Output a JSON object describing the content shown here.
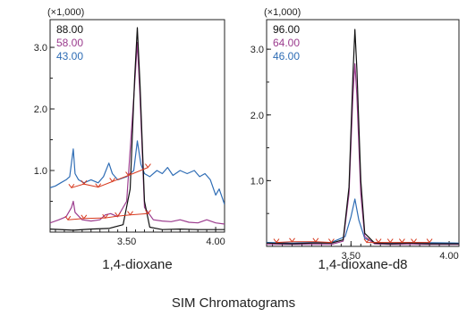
{
  "figure_caption": "SIM Chromatograms",
  "colors": {
    "frame": "#222222",
    "marker": "#d73a1f"
  },
  "chart_data": [
    {
      "type": "line",
      "subtitle": "1,4-dioxane",
      "y_multiplier": "(×1,000)",
      "xlim": [
        3.07,
        4.05
      ],
      "ylim": [
        0,
        3.45
      ],
      "x_ticks": [
        {
          "value": 3.5,
          "label": "3.50"
        },
        {
          "value": 4.0,
          "label": "4.00"
        }
      ],
      "y_ticks": [
        {
          "value": 1.0,
          "label": "1.0"
        },
        {
          "value": 2.0,
          "label": "2.0"
        },
        {
          "value": 3.0,
          "label": "3.0"
        }
      ],
      "series": [
        {
          "name": "88.00",
          "color": "#111111",
          "points": [
            [
              3.07,
              0.05
            ],
            [
              3.2,
              0.03
            ],
            [
              3.3,
              0.05
            ],
            [
              3.4,
              0.06
            ],
            [
              3.48,
              0.12
            ],
            [
              3.52,
              0.7
            ],
            [
              3.545,
              2.5
            ],
            [
              3.56,
              3.32
            ],
            [
              3.575,
              2.4
            ],
            [
              3.6,
              0.5
            ],
            [
              3.63,
              0.08
            ],
            [
              3.7,
              0.04
            ],
            [
              3.8,
              0.05
            ],
            [
              3.9,
              0.04
            ],
            [
              4.05,
              0.04
            ]
          ]
        },
        {
          "name": "58.00",
          "color": "#9b3c8e",
          "points": [
            [
              3.07,
              0.15
            ],
            [
              3.12,
              0.2
            ],
            [
              3.16,
              0.25
            ],
            [
              3.19,
              0.4
            ],
            [
              3.2,
              0.5
            ],
            [
              3.21,
              0.32
            ],
            [
              3.25,
              0.2
            ],
            [
              3.3,
              0.18
            ],
            [
              3.35,
              0.2
            ],
            [
              3.38,
              0.28
            ],
            [
              3.41,
              0.3
            ],
            [
              3.45,
              0.25
            ],
            [
              3.5,
              0.5
            ],
            [
              3.545,
              2.4
            ],
            [
              3.56,
              3.08
            ],
            [
              3.575,
              2.2
            ],
            [
              3.6,
              0.4
            ],
            [
              3.65,
              0.2
            ],
            [
              3.7,
              0.18
            ],
            [
              3.75,
              0.17
            ],
            [
              3.8,
              0.2
            ],
            [
              3.85,
              0.16
            ],
            [
              3.9,
              0.15
            ],
            [
              3.95,
              0.2
            ],
            [
              4.0,
              0.15
            ],
            [
              4.05,
              0.13
            ]
          ]
        },
        {
          "name": "43.00",
          "color": "#2f6db5",
          "points": [
            [
              3.07,
              0.72
            ],
            [
              3.1,
              0.75
            ],
            [
              3.13,
              0.8
            ],
            [
              3.16,
              0.85
            ],
            [
              3.18,
              0.9
            ],
            [
              3.2,
              1.35
            ],
            [
              3.21,
              0.95
            ],
            [
              3.23,
              0.85
            ],
            [
              3.26,
              0.8
            ],
            [
              3.3,
              0.85
            ],
            [
              3.34,
              0.8
            ],
            [
              3.37,
              0.9
            ],
            [
              3.4,
              1.12
            ],
            [
              3.42,
              0.95
            ],
            [
              3.45,
              0.85
            ],
            [
              3.5,
              0.9
            ],
            [
              3.54,
              1.0
            ],
            [
              3.56,
              1.48
            ],
            [
              3.58,
              1.1
            ],
            [
              3.6,
              0.95
            ],
            [
              3.63,
              0.9
            ],
            [
              3.67,
              1.0
            ],
            [
              3.7,
              0.95
            ],
            [
              3.73,
              1.05
            ],
            [
              3.76,
              0.92
            ],
            [
              3.8,
              1.0
            ],
            [
              3.84,
              0.95
            ],
            [
              3.88,
              1.0
            ],
            [
              3.91,
              0.9
            ],
            [
              3.94,
              0.95
            ],
            [
              3.97,
              0.85
            ],
            [
              4.0,
              0.6
            ],
            [
              4.02,
              0.7
            ],
            [
              4.05,
              0.45
            ]
          ]
        }
      ],
      "peak_markers": [
        {
          "color": "#d73a1f",
          "points": [
            [
              3.19,
              0.72
            ],
            [
              3.26,
              0.78
            ],
            [
              3.34,
              0.73
            ],
            [
              3.42,
              0.82
            ],
            [
              3.51,
              0.92
            ],
            [
              3.62,
              1.05
            ]
          ]
        },
        {
          "color": "#d73a1f",
          "points": [
            [
              3.17,
              0.2
            ],
            [
              3.26,
              0.22
            ],
            [
              3.38,
              0.23
            ],
            [
              3.45,
              0.26
            ],
            [
              3.52,
              0.28
            ],
            [
              3.62,
              0.3
            ]
          ]
        }
      ]
    },
    {
      "type": "line",
      "subtitle": "1,4-dioxane-d8",
      "y_multiplier": "(×1,000)",
      "xlim": [
        3.07,
        4.05
      ],
      "ylim": [
        0,
        3.45
      ],
      "x_ticks": [
        {
          "value": 3.5,
          "label": "3.50"
        },
        {
          "value": 4.0,
          "label": "4.00"
        }
      ],
      "y_ticks": [
        {
          "value": 1.0,
          "label": "1.0"
        },
        {
          "value": 2.0,
          "label": "2.0"
        },
        {
          "value": 3.0,
          "label": "3.0"
        }
      ],
      "series": [
        {
          "name": "96.00",
          "color": "#111111",
          "points": [
            [
              3.07,
              0.05
            ],
            [
              3.2,
              0.04
            ],
            [
              3.3,
              0.05
            ],
            [
              3.4,
              0.05
            ],
            [
              3.46,
              0.1
            ],
            [
              3.49,
              0.9
            ],
            [
              3.51,
              2.6
            ],
            [
              3.52,
              3.3
            ],
            [
              3.53,
              2.7
            ],
            [
              3.55,
              1.0
            ],
            [
              3.57,
              0.2
            ],
            [
              3.62,
              0.05
            ],
            [
              3.7,
              0.04
            ],
            [
              3.8,
              0.05
            ],
            [
              3.9,
              0.04
            ],
            [
              4.05,
              0.04
            ]
          ]
        },
        {
          "name": "64.00",
          "color": "#9b3c8e",
          "points": [
            [
              3.07,
              0.03
            ],
            [
              3.2,
              0.03
            ],
            [
              3.3,
              0.03
            ],
            [
              3.4,
              0.03
            ],
            [
              3.46,
              0.08
            ],
            [
              3.49,
              0.8
            ],
            [
              3.51,
              2.3
            ],
            [
              3.52,
              2.78
            ],
            [
              3.53,
              2.3
            ],
            [
              3.55,
              0.8
            ],
            [
              3.57,
              0.15
            ],
            [
              3.62,
              0.04
            ],
            [
              3.7,
              0.03
            ],
            [
              3.8,
              0.03
            ],
            [
              4.05,
              0.03
            ]
          ]
        },
        {
          "name": "46.00",
          "color": "#2f6db5",
          "points": [
            [
              3.07,
              0.06
            ],
            [
              3.2,
              0.05
            ],
            [
              3.3,
              0.06
            ],
            [
              3.4,
              0.06
            ],
            [
              3.47,
              0.15
            ],
            [
              3.5,
              0.45
            ],
            [
              3.52,
              0.72
            ],
            [
              3.54,
              0.4
            ],
            [
              3.57,
              0.12
            ],
            [
              3.62,
              0.06
            ],
            [
              3.7,
              0.05
            ],
            [
              3.8,
              0.06
            ],
            [
              4.05,
              0.05
            ]
          ]
        }
      ],
      "peak_markers": [
        {
          "color": "#d73a1f",
          "points": [
            [
              3.12,
              0.06
            ],
            [
              3.2,
              0.07
            ],
            [
              3.32,
              0.07
            ],
            [
              3.4,
              0.06
            ]
          ]
        },
        {
          "color": "#d73a1f",
          "points": [
            [
              3.58,
              0.06
            ],
            [
              3.64,
              0.06
            ],
            [
              3.7,
              0.06
            ],
            [
              3.76,
              0.06
            ],
            [
              3.82,
              0.06
            ],
            [
              3.9,
              0.06
            ]
          ]
        }
      ]
    }
  ]
}
